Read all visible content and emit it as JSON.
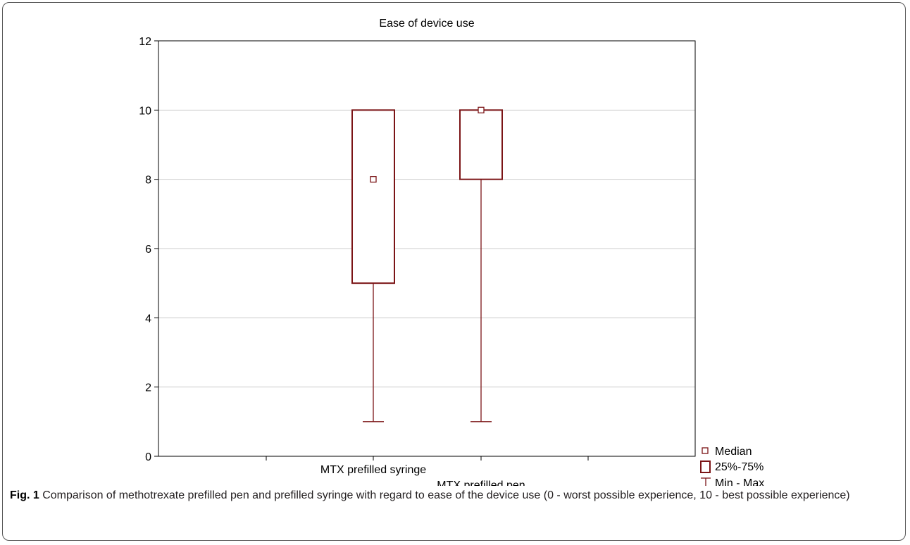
{
  "chart_data": {
    "type": "boxplot",
    "title": "Ease of device use",
    "xlabel": "",
    "ylabel": "",
    "ylim": [
      0,
      12
    ],
    "yticks": [
      0,
      2,
      4,
      6,
      8,
      10,
      12
    ],
    "grid": true,
    "categories": [
      "MTX prefilled syringe",
      "MTX prefilled pen"
    ],
    "boxes": [
      {
        "category": "MTX prefilled syringe",
        "median": 8,
        "q1": 5,
        "q3": 10,
        "min": 1,
        "max": 10
      },
      {
        "category": "MTX prefilled pen",
        "median": 10,
        "q1": 8,
        "q3": 10,
        "min": 1,
        "max": 10
      }
    ],
    "legend": {
      "position": "bottom-right",
      "entries": [
        "Median",
        "25%-75%",
        "Min - Max"
      ]
    },
    "color": "#7b1416"
  },
  "caption": {
    "label": "Fig. 1",
    "text": " Comparison of methotrexate prefilled pen and prefilled syringe with regard to ease of the device use (0 - worst possible experience, 10 - best possible experience)"
  }
}
